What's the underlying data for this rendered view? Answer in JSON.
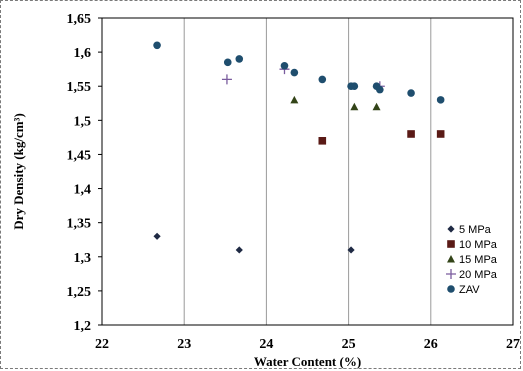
{
  "chart_data": {
    "type": "scatter",
    "xlabel": "Water Content (%)",
    "ylabel": "Dry Density (kg/cm³)",
    "xlim": [
      22,
      27
    ],
    "ylim": [
      1.2,
      1.65
    ],
    "x_ticks": [
      "22",
      "23",
      "24",
      "25",
      "26",
      "27"
    ],
    "y_ticks": [
      "1,2",
      "1,25",
      "1,3",
      "1,35",
      "1,4",
      "1,45",
      "1,5",
      "1,55",
      "1,6",
      "1,65"
    ],
    "grid": "vertical",
    "legend_position": "bottom-right",
    "series": [
      {
        "name": "5 MPa",
        "marker": "diamond",
        "color": "#1f2a44",
        "points": [
          [
            22.67,
            1.33
          ],
          [
            23.67,
            1.31
          ],
          [
            25.03,
            1.31
          ]
        ]
      },
      {
        "name": "10 MPa",
        "marker": "square",
        "color": "#5a1a16",
        "points": [
          [
            24.68,
            1.47
          ],
          [
            25.76,
            1.48
          ],
          [
            26.12,
            1.48
          ]
        ]
      },
      {
        "name": "15 MPa",
        "marker": "triangle",
        "color": "#334418",
        "points": [
          [
            24.34,
            1.53
          ],
          [
            25.07,
            1.52
          ],
          [
            25.34,
            1.52
          ]
        ]
      },
      {
        "name": "20 MPa",
        "marker": "plus",
        "color": "#7a5c9e",
        "points": [
          [
            23.52,
            1.56
          ],
          [
            24.22,
            1.575
          ],
          [
            25.38,
            1.55
          ]
        ]
      },
      {
        "name": "ZAV",
        "marker": "circle",
        "color": "#1f4e6e",
        "points": [
          [
            22.67,
            1.61
          ],
          [
            23.53,
            1.585
          ],
          [
            23.67,
            1.59
          ],
          [
            24.22,
            1.58
          ],
          [
            24.34,
            1.57
          ],
          [
            24.68,
            1.56
          ],
          [
            25.03,
            1.55
          ],
          [
            25.07,
            1.55
          ],
          [
            25.34,
            1.55
          ],
          [
            25.38,
            1.545
          ],
          [
            25.76,
            1.54
          ],
          [
            26.12,
            1.53
          ]
        ]
      }
    ]
  }
}
